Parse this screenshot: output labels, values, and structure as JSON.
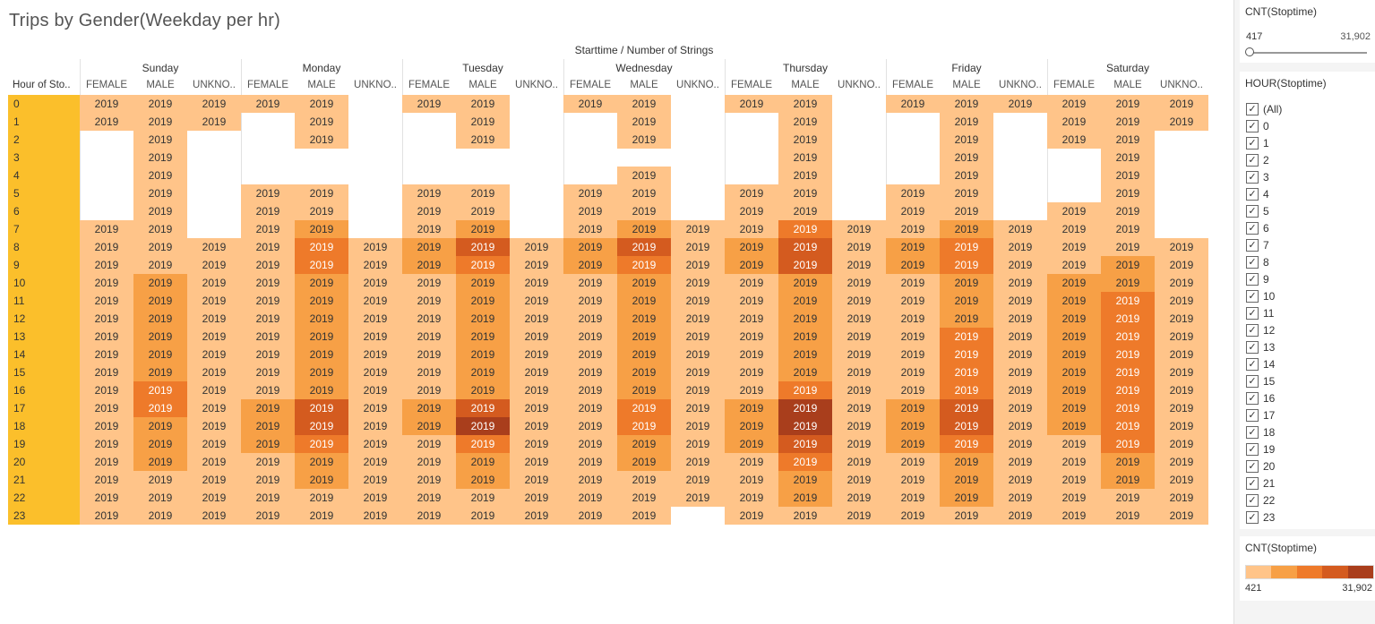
{
  "title": "Trips by Gender(Weekday per hr)",
  "header_label": "Starttime / Number of Strings",
  "row_header_label": "Hour of Sto..",
  "chart_data": {
    "type": "heatmap",
    "title": "Trips by Gender(Weekday per hr)",
    "days": [
      "Sunday",
      "Monday",
      "Tuesday",
      "Wednesday",
      "Thursday",
      "Friday",
      "Saturday"
    ],
    "genders": [
      "FEMALE",
      "MALE",
      "UNKNO.."
    ],
    "hours": [
      "0",
      "1",
      "2",
      "3",
      "4",
      "5",
      "6",
      "7",
      "8",
      "9",
      "10",
      "11",
      "12",
      "13",
      "14",
      "15",
      "16",
      "17",
      "18",
      "19",
      "20",
      "21",
      "22",
      "23"
    ],
    "cell_text": "2019",
    "color_scale": [
      "#ffc489",
      "#f7a046",
      "#ee7a2a",
      "#d45b1f",
      "#a93e1c"
    ],
    "intensity": [
      [
        0,
        0,
        0,
        0,
        0,
        null,
        0,
        0,
        null,
        0,
        0,
        null,
        0,
        0,
        null,
        0,
        0,
        0,
        0,
        0,
        0
      ],
      [
        0,
        0,
        0,
        null,
        0,
        null,
        null,
        0,
        null,
        null,
        0,
        null,
        null,
        0,
        null,
        null,
        0,
        null,
        0,
        0,
        0
      ],
      [
        null,
        0,
        null,
        null,
        0,
        null,
        null,
        0,
        null,
        null,
        0,
        null,
        null,
        0,
        null,
        null,
        0,
        null,
        0,
        0,
        null
      ],
      [
        null,
        0,
        null,
        null,
        null,
        null,
        null,
        null,
        null,
        null,
        null,
        null,
        null,
        0,
        null,
        null,
        0,
        null,
        null,
        0,
        null
      ],
      [
        null,
        0,
        null,
        null,
        null,
        null,
        null,
        null,
        null,
        null,
        0,
        null,
        null,
        0,
        null,
        null,
        0,
        null,
        null,
        0,
        null
      ],
      [
        null,
        0,
        null,
        0,
        0,
        null,
        0,
        0,
        null,
        0,
        0,
        null,
        0,
        0,
        null,
        0,
        0,
        null,
        null,
        0,
        null
      ],
      [
        null,
        0,
        null,
        0,
        0,
        null,
        0,
        0,
        null,
        0,
        0,
        null,
        0,
        0,
        null,
        0,
        0,
        null,
        0,
        0,
        null
      ],
      [
        0,
        0,
        null,
        0,
        1,
        null,
        0,
        1,
        null,
        0,
        1,
        0,
        0,
        2,
        0,
        0,
        1,
        0,
        0,
        0,
        null
      ],
      [
        0,
        0,
        0,
        0,
        2,
        0,
        1,
        3,
        0,
        1,
        3,
        0,
        1,
        3,
        0,
        1,
        2,
        0,
        0,
        0,
        0
      ],
      [
        0,
        0,
        0,
        0,
        2,
        0,
        1,
        2,
        0,
        1,
        2,
        0,
        1,
        3,
        0,
        1,
        2,
        0,
        0,
        1,
        0
      ],
      [
        0,
        1,
        0,
        0,
        1,
        0,
        0,
        1,
        0,
        0,
        1,
        0,
        0,
        1,
        0,
        0,
        1,
        0,
        1,
        1,
        0
      ],
      [
        0,
        1,
        0,
        0,
        1,
        0,
        0,
        1,
        0,
        0,
        1,
        0,
        0,
        1,
        0,
        0,
        1,
        0,
        1,
        2,
        0
      ],
      [
        0,
        1,
        0,
        0,
        1,
        0,
        0,
        1,
        0,
        0,
        1,
        0,
        0,
        1,
        0,
        0,
        1,
        0,
        1,
        2,
        0
      ],
      [
        0,
        1,
        0,
        0,
        1,
        0,
        0,
        1,
        0,
        0,
        1,
        0,
        0,
        1,
        0,
        0,
        2,
        0,
        1,
        2,
        0
      ],
      [
        0,
        1,
        0,
        0,
        1,
        0,
        0,
        1,
        0,
        0,
        1,
        0,
        0,
        1,
        0,
        0,
        2,
        0,
        1,
        2,
        0
      ],
      [
        0,
        1,
        0,
        0,
        1,
        0,
        0,
        1,
        0,
        0,
        1,
        0,
        0,
        1,
        0,
        0,
        2,
        0,
        1,
        2,
        0
      ],
      [
        0,
        2,
        0,
        0,
        1,
        0,
        0,
        1,
        0,
        0,
        1,
        0,
        0,
        2,
        0,
        0,
        2,
        0,
        1,
        2,
        0
      ],
      [
        0,
        2,
        0,
        1,
        3,
        0,
        1,
        3,
        0,
        0,
        2,
        0,
        1,
        4,
        0,
        1,
        3,
        0,
        1,
        2,
        0
      ],
      [
        0,
        1,
        0,
        1,
        3,
        0,
        1,
        4,
        0,
        0,
        2,
        0,
        1,
        4,
        0,
        1,
        3,
        0,
        1,
        2,
        0
      ],
      [
        0,
        1,
        0,
        1,
        2,
        0,
        0,
        2,
        0,
        0,
        1,
        0,
        1,
        3,
        0,
        1,
        2,
        0,
        0,
        2,
        0
      ],
      [
        0,
        1,
        0,
        0,
        1,
        0,
        0,
        1,
        0,
        0,
        1,
        0,
        0,
        2,
        0,
        0,
        1,
        0,
        0,
        1,
        0
      ],
      [
        0,
        0,
        0,
        0,
        1,
        0,
        0,
        1,
        0,
        0,
        0,
        0,
        0,
        1,
        0,
        0,
        1,
        0,
        0,
        1,
        0
      ],
      [
        0,
        0,
        0,
        0,
        0,
        0,
        0,
        0,
        0,
        0,
        0,
        0,
        0,
        1,
        0,
        0,
        1,
        0,
        0,
        0,
        0
      ],
      [
        0,
        0,
        0,
        0,
        0,
        0,
        0,
        0,
        0,
        0,
        0,
        null,
        0,
        0,
        0,
        0,
        0,
        0,
        0,
        0,
        0
      ]
    ]
  },
  "sidebar": {
    "slider": {
      "title": "CNT(Stoptime)",
      "min_label": "417",
      "max_label": "31,902",
      "value_fraction": 0
    },
    "filter": {
      "title": "HOUR(Stoptime)",
      "items": [
        "(All)",
        "0",
        "1",
        "2",
        "3",
        "4",
        "5",
        "6",
        "7",
        "8",
        "9",
        "10",
        "11",
        "12",
        "13",
        "14",
        "15",
        "16",
        "17",
        "18",
        "19",
        "20",
        "21",
        "22",
        "23"
      ],
      "check_glyph": "✓"
    },
    "legend": {
      "title": "CNT(Stoptime)",
      "min_label": "421",
      "max_label": "31,902"
    }
  }
}
